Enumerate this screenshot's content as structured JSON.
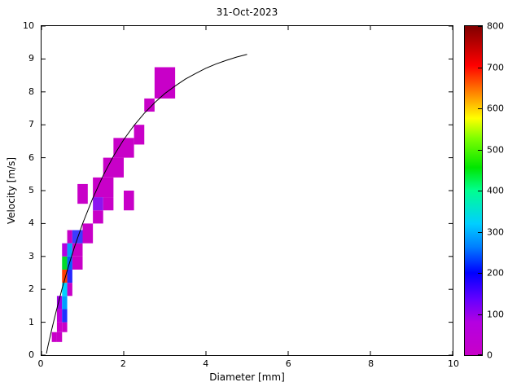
{
  "figure": {
    "window_background": "#ffffff",
    "axes_color": "#000000"
  },
  "chart_data": {
    "type": "heatmap",
    "title": "31-Oct-2023",
    "xlabel": "Diameter [mm]",
    "ylabel": "Velocity [m/s]",
    "xlim": [
      0,
      10
    ],
    "ylim": [
      0,
      10
    ],
    "x_ticks": [
      0,
      2,
      4,
      6,
      8,
      10
    ],
    "y_ticks": [
      0,
      1,
      2,
      3,
      4,
      5,
      6,
      7,
      8,
      9,
      10
    ],
    "grid": false,
    "colorbar": {
      "min": 0,
      "max": 800,
      "ticks": [
        0,
        100,
        200,
        300,
        400,
        500,
        600,
        700,
        800
      ],
      "gradient": [
        {
          "pos": 0.0,
          "color": "#C800C8"
        },
        {
          "pos": 0.1,
          "color": "#B400E1"
        },
        {
          "pos": 0.17,
          "color": "#6400FF"
        },
        {
          "pos": 0.25,
          "color": "#0000FF"
        },
        {
          "pos": 0.33,
          "color": "#0080FF"
        },
        {
          "pos": 0.4,
          "color": "#00CFFF"
        },
        {
          "pos": 0.5,
          "color": "#00FF90"
        },
        {
          "pos": 0.57,
          "color": "#00E600"
        },
        {
          "pos": 0.66,
          "color": "#80FF00"
        },
        {
          "pos": 0.72,
          "color": "#FFFF00"
        },
        {
          "pos": 0.8,
          "color": "#FF8000"
        },
        {
          "pos": 0.88,
          "color": "#FF0000"
        },
        {
          "pos": 1.0,
          "color": "#800000"
        }
      ]
    },
    "cells": [
      {
        "x": 0.25,
        "y": 0.4,
        "w": 0.125,
        "h": 0.3,
        "count": 40,
        "color": "#C800C8"
      },
      {
        "x": 0.375,
        "y": 0.4,
        "w": 0.125,
        "h": 0.3,
        "count": 55,
        "color": "#C800C8"
      },
      {
        "x": 0.375,
        "y": 0.7,
        "w": 0.125,
        "h": 0.3,
        "count": 70,
        "color": "#CC00CC"
      },
      {
        "x": 0.5,
        "y": 0.7,
        "w": 0.125,
        "h": 0.3,
        "count": 45,
        "color": "#C800C8"
      },
      {
        "x": 0.375,
        "y": 1.0,
        "w": 0.125,
        "h": 0.4,
        "count": 90,
        "color": "#C000D8"
      },
      {
        "x": 0.5,
        "y": 1.0,
        "w": 0.125,
        "h": 0.4,
        "count": 210,
        "color": "#1E32FF"
      },
      {
        "x": 0.375,
        "y": 1.4,
        "w": 0.125,
        "h": 0.4,
        "count": 110,
        "color": "#A000E6"
      },
      {
        "x": 0.5,
        "y": 1.4,
        "w": 0.125,
        "h": 0.4,
        "count": 300,
        "color": "#00A0FF"
      },
      {
        "x": 0.5,
        "y": 1.8,
        "w": 0.125,
        "h": 0.4,
        "count": 340,
        "color": "#00D2FF"
      },
      {
        "x": 0.625,
        "y": 1.8,
        "w": 0.125,
        "h": 0.4,
        "count": 90,
        "color": "#C800C8"
      },
      {
        "x": 0.5,
        "y": 2.2,
        "w": 0.125,
        "h": 0.4,
        "count": 730,
        "color": "#FF3C00"
      },
      {
        "x": 0.625,
        "y": 2.2,
        "w": 0.125,
        "h": 0.4,
        "count": 200,
        "color": "#2828FF"
      },
      {
        "x": 0.5,
        "y": 2.6,
        "w": 0.125,
        "h": 0.4,
        "count": 470,
        "color": "#00DC28"
      },
      {
        "x": 0.625,
        "y": 2.6,
        "w": 0.125,
        "h": 0.4,
        "count": 240,
        "color": "#0064FF"
      },
      {
        "x": 0.75,
        "y": 2.6,
        "w": 0.25,
        "h": 0.4,
        "count": 70,
        "color": "#C800C8"
      },
      {
        "x": 0.5,
        "y": 3.0,
        "w": 0.125,
        "h": 0.4,
        "count": 120,
        "color": "#B400E1"
      },
      {
        "x": 0.625,
        "y": 3.0,
        "w": 0.125,
        "h": 0.4,
        "count": 290,
        "color": "#00A0FF"
      },
      {
        "x": 0.75,
        "y": 3.0,
        "w": 0.25,
        "h": 0.4,
        "count": 90,
        "color": "#C800C8"
      },
      {
        "x": 0.625,
        "y": 3.4,
        "w": 0.125,
        "h": 0.4,
        "count": 100,
        "color": "#C800C8"
      },
      {
        "x": 0.75,
        "y": 3.4,
        "w": 0.25,
        "h": 0.4,
        "count": 190,
        "color": "#3C3CFF"
      },
      {
        "x": 1.0,
        "y": 3.4,
        "w": 0.25,
        "h": 0.6,
        "count": 60,
        "color": "#C800C8"
      },
      {
        "x": 0.875,
        "y": 4.6,
        "w": 0.25,
        "h": 0.6,
        "count": 55,
        "color": "#C800C8"
      },
      {
        "x": 1.25,
        "y": 4.0,
        "w": 0.25,
        "h": 0.4,
        "count": 60,
        "color": "#C800C8"
      },
      {
        "x": 1.25,
        "y": 4.4,
        "w": 0.25,
        "h": 0.4,
        "count": 140,
        "color": "#8C14F0"
      },
      {
        "x": 1.5,
        "y": 4.4,
        "w": 0.25,
        "h": 0.4,
        "count": 55,
        "color": "#C800C8"
      },
      {
        "x": 1.25,
        "y": 4.8,
        "w": 0.5,
        "h": 0.6,
        "count": 55,
        "color": "#C800C8"
      },
      {
        "x": 1.5,
        "y": 5.4,
        "w": 0.5,
        "h": 0.6,
        "count": 60,
        "color": "#C800C8"
      },
      {
        "x": 1.75,
        "y": 6.0,
        "w": 0.25,
        "h": 0.6,
        "count": 50,
        "color": "#C800C8"
      },
      {
        "x": 2.0,
        "y": 4.4,
        "w": 0.25,
        "h": 0.6,
        "count": 45,
        "color": "#C800C8"
      },
      {
        "x": 2.0,
        "y": 6.0,
        "w": 0.25,
        "h": 0.6,
        "count": 45,
        "color": "#C800C8"
      },
      {
        "x": 2.25,
        "y": 6.4,
        "w": 0.25,
        "h": 0.6,
        "count": 50,
        "color": "#C800C8"
      },
      {
        "x": 2.5,
        "y": 7.4,
        "w": 0.25,
        "h": 0.4,
        "count": 45,
        "color": "#C800C8"
      },
      {
        "x": 2.75,
        "y": 7.8,
        "w": 0.5,
        "h": 0.95,
        "count": 55,
        "color": "#C800C8"
      }
    ],
    "curve": {
      "name": "terminal-velocity-curve",
      "color": "#000000",
      "points": [
        [
          0.12,
          0.05
        ],
        [
          0.15,
          0.24
        ],
        [
          0.25,
          0.79
        ],
        [
          0.35,
          1.3
        ],
        [
          0.5,
          2.02
        ],
        [
          0.65,
          2.68
        ],
        [
          0.8,
          3.28
        ],
        [
          1.0,
          4.0
        ],
        [
          1.25,
          4.78
        ],
        [
          1.5,
          5.46
        ],
        [
          1.75,
          6.05
        ],
        [
          2.0,
          6.55
        ],
        [
          2.25,
          6.98
        ],
        [
          2.5,
          7.35
        ],
        [
          2.75,
          7.67
        ],
        [
          3.0,
          7.95
        ],
        [
          3.25,
          8.18
        ],
        [
          3.5,
          8.39
        ],
        [
          3.75,
          8.56
        ],
        [
          4.0,
          8.72
        ],
        [
          4.25,
          8.85
        ],
        [
          4.5,
          8.96
        ],
        [
          4.75,
          9.06
        ],
        [
          5.0,
          9.14
        ]
      ]
    }
  }
}
